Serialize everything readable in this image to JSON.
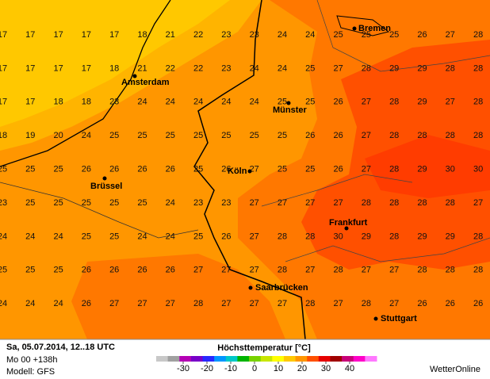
{
  "map": {
    "grid": [
      [
        17,
        17,
        17,
        17,
        17,
        18,
        21,
        22,
        23,
        23,
        24,
        24,
        25,
        25,
        25,
        26,
        27,
        28
      ],
      [
        17,
        17,
        17,
        17,
        18,
        21,
        22,
        22,
        23,
        24,
        24,
        25,
        27,
        28,
        29,
        29,
        28,
        28
      ],
      [
        17,
        17,
        18,
        18,
        23,
        24,
        24,
        24,
        24,
        24,
        25,
        25,
        26,
        27,
        28,
        29,
        27,
        28
      ],
      [
        18,
        19,
        20,
        24,
        25,
        25,
        25,
        25,
        25,
        25,
        25,
        26,
        26,
        27,
        28,
        28,
        28,
        28
      ],
      [
        25,
        25,
        25,
        26,
        26,
        26,
        26,
        25,
        26,
        27,
        25,
        25,
        26,
        27,
        28,
        29,
        30,
        30
      ],
      [
        23,
        25,
        25,
        25,
        25,
        25,
        24,
        23,
        23,
        27,
        27,
        27,
        27,
        28,
        28,
        28,
        28,
        27
      ],
      [
        24,
        24,
        24,
        25,
        25,
        24,
        24,
        25,
        26,
        27,
        28,
        28,
        30,
        29,
        28,
        29,
        29,
        28
      ],
      [
        25,
        25,
        25,
        26,
        26,
        26,
        26,
        27,
        27,
        27,
        28,
        27,
        28,
        27,
        27,
        28,
        28,
        28
      ],
      [
        24,
        24,
        24,
        26,
        27,
        27,
        27,
        28,
        27,
        27,
        27,
        28,
        27,
        28,
        27,
        26,
        26,
        26
      ]
    ],
    "cities": [
      "Bremen",
      "Amsterdam",
      "Münster",
      "Brüssel",
      "Köln",
      "Frankfurt",
      "Saarbrücken",
      "Stuttgart"
    ]
  },
  "footer": {
    "date": "Sa, 05.07.2014, 12..18 UTC",
    "run": "Mo 00 +138h",
    "model": "Modell: GFS",
    "legend_title": "Höchsttemperatur [°C]",
    "brand": "WetterOnline",
    "legend_ticks": [
      -30,
      -20,
      -10,
      0,
      10,
      20,
      30,
      40
    ],
    "legend_colors": [
      "#c8c8c8",
      "#a0a0a0",
      "#b400b4",
      "#7800c8",
      "#2828ff",
      "#0096ff",
      "#00c8c8",
      "#00b400",
      "#78d200",
      "#c8e600",
      "#ffff00",
      "#ffc800",
      "#ff9600",
      "#ff5000",
      "#e60000",
      "#a00000",
      "#c80078",
      "#ff00c8",
      "#ff78ff"
    ]
  }
}
